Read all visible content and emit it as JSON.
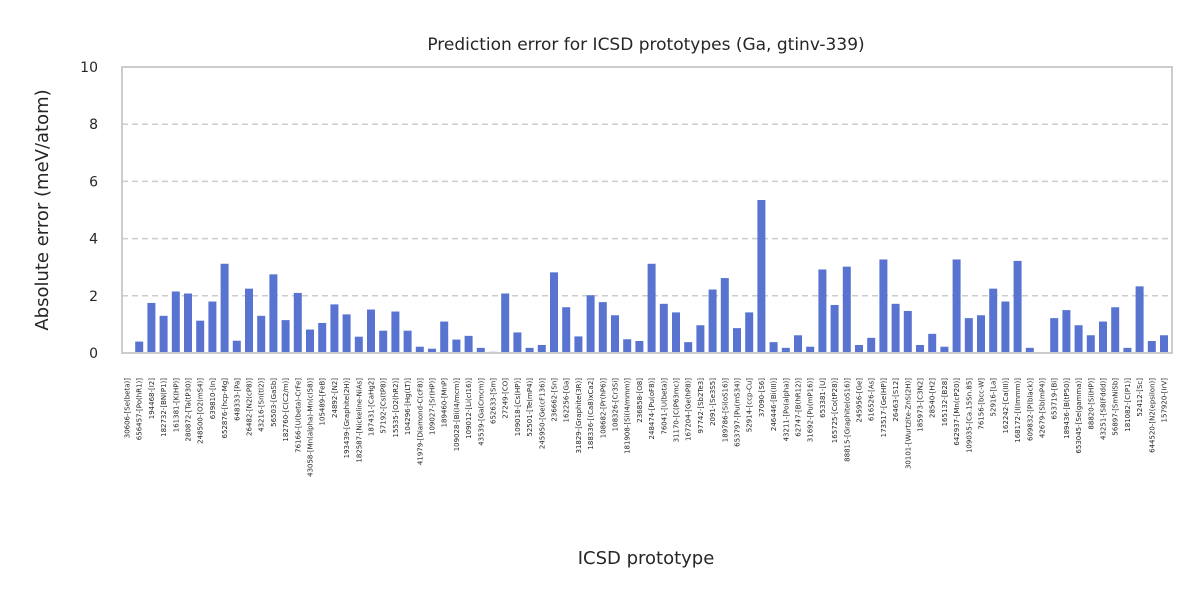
{
  "chart_data": {
    "type": "bar",
    "title": "Prediction error for ICSD prototypes (Ga, gtinv-339)",
    "xlabel": "ICSD prototype",
    "ylabel": "Absolute error (meV/atom)",
    "ylim": [
      0,
      10
    ],
    "yticks": [
      0,
      2,
      4,
      6,
      8,
      10
    ],
    "grid": "horizontal dashed",
    "bar_color": "#5874d0",
    "categories": [
      "30606-[Se(beta)]",
      "656457-[Po(hR1)]",
      "194468-[I2]",
      "182732-[BN(P1)]",
      "161381-[K(HP)]",
      "280872-[Ta(tP30)]",
      "248500-[O2(mS4)]",
      "639810-[In]",
      "652876-[hcp-Mg]",
      "648333-[Pa]",
      "26482-[N2(cP8)]",
      "43216-[Sn(tI2)]",
      "56503-[GaSb]",
      "182760-[C(C2/m)]",
      "76166-[U(beta)-CrFe]",
      "43058-[Mn(alpha)-Mn(cI58)]",
      "105489-[FeB]",
      "24892-[N2]",
      "193439-[Graphite(2H)]",
      "182587-[Nickeline-NiAs]",
      "187431-[CaHg2]",
      "57192-[Cs(tP8)]",
      "15535-[O2(hR2)]",
      "104296-[Hg(LT)]",
      "41979-[Diamond-C(cF8)]",
      "109027-[Sr(HP)]",
      "189460-[MnP]",
      "109028-[Bi(I4/mcm)]",
      "109012-[Li(cI16)]",
      "43539-[Ga(Cmcm)]",
      "652633-[Sm]",
      "27249-[CO]",
      "109018-[Cs(HP)]",
      "52501-[Te(mP4)]",
      "245950-[Ge(cF136)]",
      "236662-[Sn]",
      "162256-[Ga]",
      "31829-[Graphite(3R)]",
      "188336-[(Ca8)xCa2]",
      "108682-[Pr(hP6)]",
      "108326-[Cr3Si]",
      "181908-[Si(I4/mmm)]",
      "236858-[O8]",
      "248474-[Pu(oF8)]",
      "76041-[U(beta)]",
      "31170-[C(P63mc)]",
      "167204-[Ge(hP8)]",
      "97742-[Sb2Te3]",
      "2091-[Se3S5]",
      "189786-[Si(oS16)]",
      "653797-[Pu(mS34)]",
      "52914-[ccp-Cu]",
      "37090-[S6]",
      "246446-[Bi(III)]",
      "43211-[Po(alpha)]",
      "62747-[B(hR12)]",
      "31692-[Pu(mP16)]",
      "653381-[U]",
      "165725-[Co(tP28)]",
      "88815-[Graphite(oS16)]",
      "245956-[Ge]",
      "616526-[As]",
      "173517-[Ge(HP)]",
      "26463-[S12]",
      "30101-[Wurtzite-ZnS(2H)]",
      "185973-[C3N2]",
      "28540-[H2]",
      "165132-[B28]",
      "642937-[Mn(cP20)]",
      "109035-[Ca.15Sn.85]",
      "76156-[bcc-W]",
      "52916-[La]",
      "162242-[Ca(III)]",
      "168172-[I(Immm)]",
      "609832-[P(black)]",
      "42679-[Sb(mP4)]",
      "653719-[Bi]",
      "189436-[B(tP50)]",
      "653045-[Se(gamma)]",
      "88820-[Si(HP)]",
      "43251-[S8(Fddd)]",
      "56897-[SmNiSb]",
      "181082-[C(P1)]",
      "52412-[Sc]",
      "644520-[N2(epsilon)]",
      "157920-[IrV]"
    ],
    "values": [
      0.0,
      0.4,
      1.75,
      1.3,
      2.15,
      2.08,
      1.13,
      1.8,
      3.12,
      0.43,
      2.25,
      1.3,
      2.75,
      1.15,
      2.1,
      0.82,
      1.05,
      1.7,
      1.35,
      0.57,
      1.52,
      0.78,
      1.45,
      0.78,
      0.22,
      0.15,
      1.1,
      0.47,
      0.6,
      0.18,
      0.04,
      2.08,
      0.72,
      0.18,
      0.28,
      2.82,
      1.6,
      0.58,
      2.02,
      1.78,
      1.32,
      0.48,
      0.42,
      3.12,
      1.72,
      1.42,
      0.38,
      0.97,
      2.22,
      2.62,
      0.87,
      1.42,
      5.35,
      0.38,
      0.18,
      0.62,
      0.22,
      2.92,
      1.68,
      3.02,
      0.28,
      0.53,
      3.27,
      1.72,
      1.47,
      0.28,
      0.67,
      0.22,
      3.27,
      1.22,
      1.32,
      2.25,
      1.8,
      3.22,
      0.18,
      0.0,
      1.22,
      1.5,
      0.97,
      0.62,
      1.1,
      1.6,
      0.18,
      2.33,
      0.42,
      0.62
    ]
  }
}
